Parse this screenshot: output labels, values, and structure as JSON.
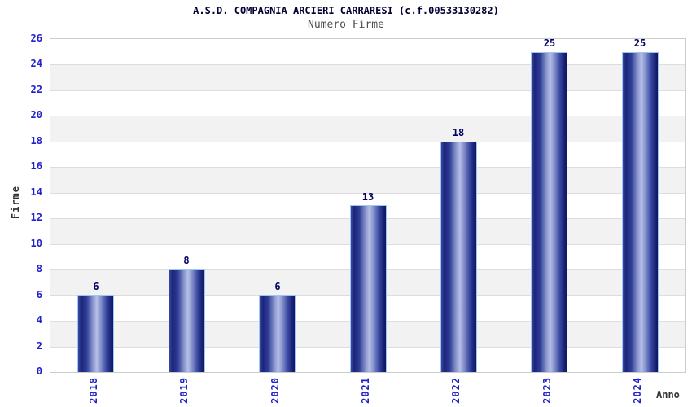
{
  "chart_data": {
    "type": "bar",
    "title": "A.S.D. COMPAGNIA ARCIERI CARRARESI (c.f.00533130282)",
    "subtitle": "Numero Firme",
    "xlabel": "Anno",
    "ylabel": "Firme",
    "categories": [
      "2018",
      "2019",
      "2020",
      "2021",
      "2022",
      "2023",
      "2024"
    ],
    "values": [
      6,
      8,
      6,
      13,
      18,
      25,
      25
    ],
    "ylim": [
      0,
      26
    ],
    "ytick_step": 2,
    "legend": "none",
    "grid": "horizontal-bands-alternating",
    "colors": {
      "bar_dark": "#1b2578",
      "bar_highlight": "#b4bfe8",
      "bar_border": "#9fc6f0",
      "tick_label": "#2222cc",
      "value_label": "#000066",
      "title": "#000033",
      "subtitle": "#4d4d4d",
      "axis_title": "#333333",
      "band_gray": "#f2f2f2",
      "gridline": "#dddddd",
      "plot_border": "#cccccc",
      "background": "#ffffff"
    }
  }
}
